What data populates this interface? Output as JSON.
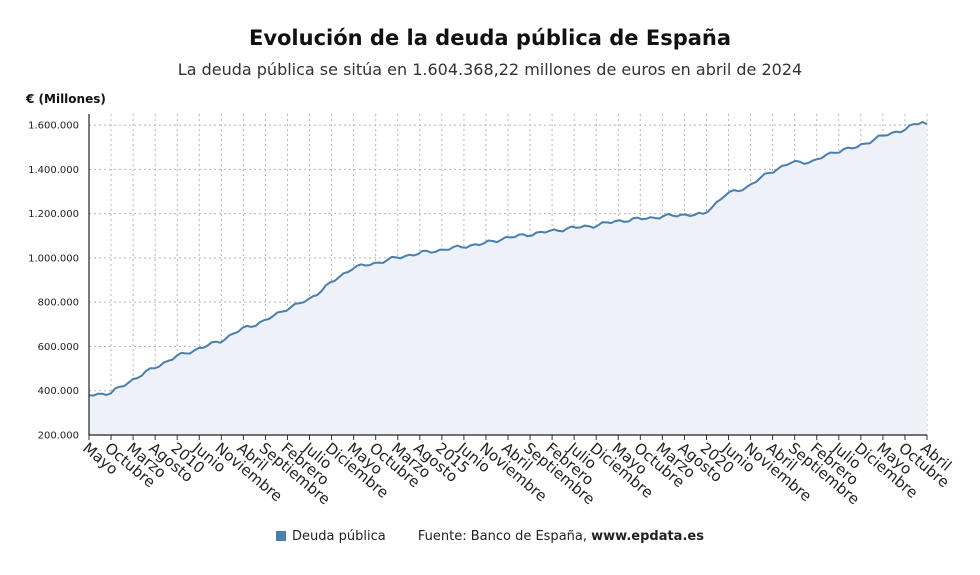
{
  "chart_data": {
    "type": "area",
    "title": "Evolución de la deuda pública de España",
    "subtitle": "La deuda pública se sitúa en 1.604.368,22 millones de euros en abril de 2024",
    "ylabel": "€ (Millones)",
    "xlabel": "",
    "ylim": [
      200000,
      1650000
    ],
    "yticks": [
      200000,
      400000,
      600000,
      800000,
      1000000,
      1200000,
      1400000,
      1600000
    ],
    "ytick_labels": [
      "200.000",
      "400.000",
      "600.000",
      "800.000",
      "1.000.000",
      "1.200.000",
      "1.400.000",
      "1.600.000"
    ],
    "x_start": "2008-05",
    "x_end": "2024-04",
    "xtick_labels": [
      "Mayo",
      "Octubre",
      "Marzo",
      "Agosto",
      "2010",
      "Junio",
      "Noviembre",
      "Abril",
      "Septiembre",
      "Febrero",
      "Julio",
      "Diciembre",
      "Mayo",
      "Octubre",
      "Marzo",
      "Agosto",
      "2015",
      "Junio",
      "Noviembre",
      "Abril",
      "Septiembre",
      "Febrero",
      "Julio",
      "Diciembre",
      "Mayo",
      "Octubre",
      "Marzo",
      "Agosto",
      "2020",
      "Junio",
      "Noviembre",
      "Abril",
      "Septiembre",
      "Febrero",
      "Julio",
      "Diciembre",
      "Mayo",
      "Octubre",
      "Abril"
    ],
    "grid": true,
    "series": [
      {
        "name": "Deuda pública",
        "color": "#4a7fad",
        "fill": "#eef2f8",
        "anchors": [
          {
            "date": "2008-05",
            "value": 380000
          },
          {
            "date": "2008-10",
            "value": 390000
          },
          {
            "date": "2009-03",
            "value": 450000
          },
          {
            "date": "2009-08",
            "value": 505000
          },
          {
            "date": "2010-01",
            "value": 555000
          },
          {
            "date": "2010-06",
            "value": 590000
          },
          {
            "date": "2010-11",
            "value": 625000
          },
          {
            "date": "2011-04",
            "value": 680000
          },
          {
            "date": "2011-09",
            "value": 715000
          },
          {
            "date": "2012-02",
            "value": 770000
          },
          {
            "date": "2012-07",
            "value": 810000
          },
          {
            "date": "2012-12",
            "value": 885000
          },
          {
            "date": "2013-05",
            "value": 955000
          },
          {
            "date": "2013-10",
            "value": 975000
          },
          {
            "date": "2014-03",
            "value": 1000000
          },
          {
            "date": "2014-08",
            "value": 1020000
          },
          {
            "date": "2015-01",
            "value": 1035000
          },
          {
            "date": "2015-06",
            "value": 1050000
          },
          {
            "date": "2015-11",
            "value": 1065000
          },
          {
            "date": "2016-04",
            "value": 1090000
          },
          {
            "date": "2016-09",
            "value": 1105000
          },
          {
            "date": "2017-02",
            "value": 1120000
          },
          {
            "date": "2017-07",
            "value": 1135000
          },
          {
            "date": "2017-12",
            "value": 1145000
          },
          {
            "date": "2018-05",
            "value": 1165000
          },
          {
            "date": "2018-10",
            "value": 1175000
          },
          {
            "date": "2019-03",
            "value": 1185000
          },
          {
            "date": "2019-08",
            "value": 1195000
          },
          {
            "date": "2020-01",
            "value": 1195000
          },
          {
            "date": "2020-06",
            "value": 1285000
          },
          {
            "date": "2020-11",
            "value": 1320000
          },
          {
            "date": "2021-04",
            "value": 1385000
          },
          {
            "date": "2021-09",
            "value": 1430000
          },
          {
            "date": "2022-02",
            "value": 1435000
          },
          {
            "date": "2022-07",
            "value": 1480000
          },
          {
            "date": "2022-12",
            "value": 1500000
          },
          {
            "date": "2023-05",
            "value": 1545000
          },
          {
            "date": "2023-10",
            "value": 1575000
          },
          {
            "date": "2024-03",
            "value": 1615000
          },
          {
            "date": "2024-04",
            "value": 1604368.22
          }
        ]
      }
    ]
  },
  "legend": {
    "series_label": "Deuda pública",
    "source": "Fuente: Banco de España, ",
    "site": "www.epdata.es"
  }
}
